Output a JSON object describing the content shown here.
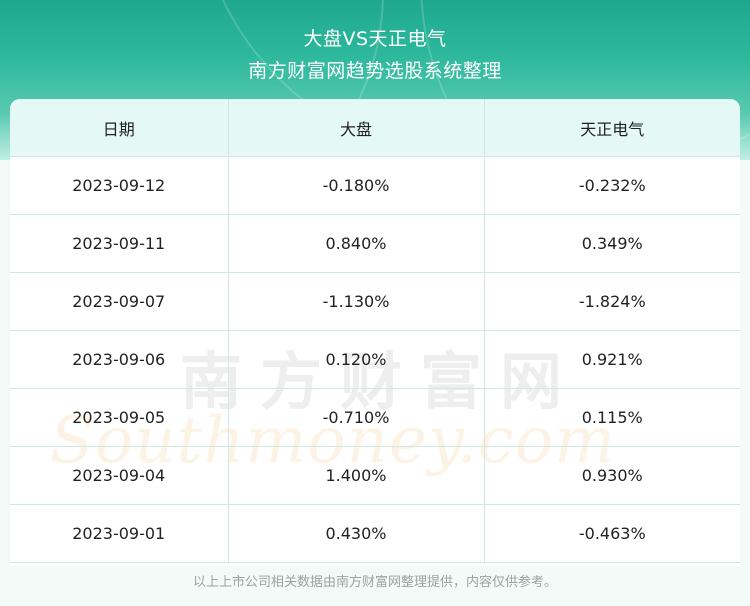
{
  "header": {
    "title": "大盘VS天正电气",
    "subtitle": "南方财富网趋势选股系统整理"
  },
  "table": {
    "columns": [
      "日期",
      "大盘",
      "天正电气"
    ],
    "rows": [
      [
        "2023-09-12",
        "-0.180%",
        "-0.232%"
      ],
      [
        "2023-09-11",
        "0.840%",
        "0.349%"
      ],
      [
        "2023-09-07",
        "-1.130%",
        "-1.824%"
      ],
      [
        "2023-09-06",
        "0.120%",
        "0.921%"
      ],
      [
        "2023-09-05",
        "-0.710%",
        "0.115%"
      ],
      [
        "2023-09-04",
        "1.400%",
        "0.930%"
      ],
      [
        "2023-09-01",
        "0.430%",
        "-0.463%"
      ]
    ]
  },
  "watermark": {
    "cn": "南方财富网",
    "en": "Southmoney.com"
  },
  "footer": {
    "note": "以上上市公司相关数据由南方财富网整理提供，内容仅供参考。"
  },
  "colors": {
    "header_green": "#2db89c",
    "header_row_bg": "#e4f8f5",
    "grid_line": "#cfe8e3"
  }
}
